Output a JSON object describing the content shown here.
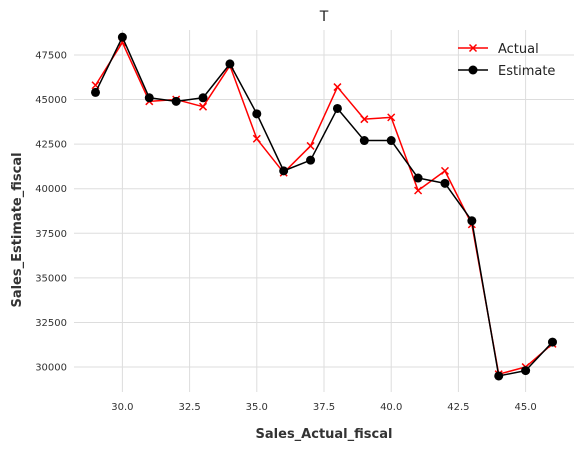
{
  "chart_data": {
    "type": "line",
    "title": "T",
    "xlabel": "Sales_Actual_fiscal",
    "ylabel": "Sales_Estimate_fiscal",
    "xlim": [
      28.2,
      46.8
    ],
    "ylim": [
      28600,
      48900
    ],
    "grid": true,
    "legend_position": "top-right",
    "x_ticks": [
      30.0,
      32.5,
      35.0,
      37.5,
      40.0,
      42.5,
      45.0
    ],
    "x_tick_labels": [
      "30.0",
      "32.5",
      "35.0",
      "37.5",
      "40.0",
      "42.5",
      "45.0"
    ],
    "y_ticks": [
      30000,
      32500,
      35000,
      37500,
      40000,
      42500,
      45000,
      47500
    ],
    "y_tick_labels": [
      "30000",
      "32500",
      "35000",
      "37500",
      "40000",
      "42500",
      "45000",
      "47500"
    ],
    "x": [
      29,
      30,
      31,
      32,
      33,
      34,
      35,
      36,
      37,
      38,
      39,
      40,
      41,
      42,
      43,
      44,
      45,
      46
    ],
    "series": [
      {
        "name": "Actual",
        "color": "#ff0000",
        "marker": "x",
        "values": [
          45800,
          48200,
          44900,
          45000,
          44600,
          46900,
          42800,
          40900,
          42400,
          45700,
          43900,
          44000,
          39900,
          41000,
          38000,
          29600,
          30000,
          31300
        ]
      },
      {
        "name": "Estimate",
        "color": "#000000",
        "marker": "circle",
        "values": [
          45400,
          48500,
          45100,
          44900,
          45100,
          47000,
          44200,
          41000,
          41600,
          44500,
          42700,
          42700,
          40600,
          40300,
          38200,
          29500,
          29800,
          31400
        ]
      }
    ]
  }
}
